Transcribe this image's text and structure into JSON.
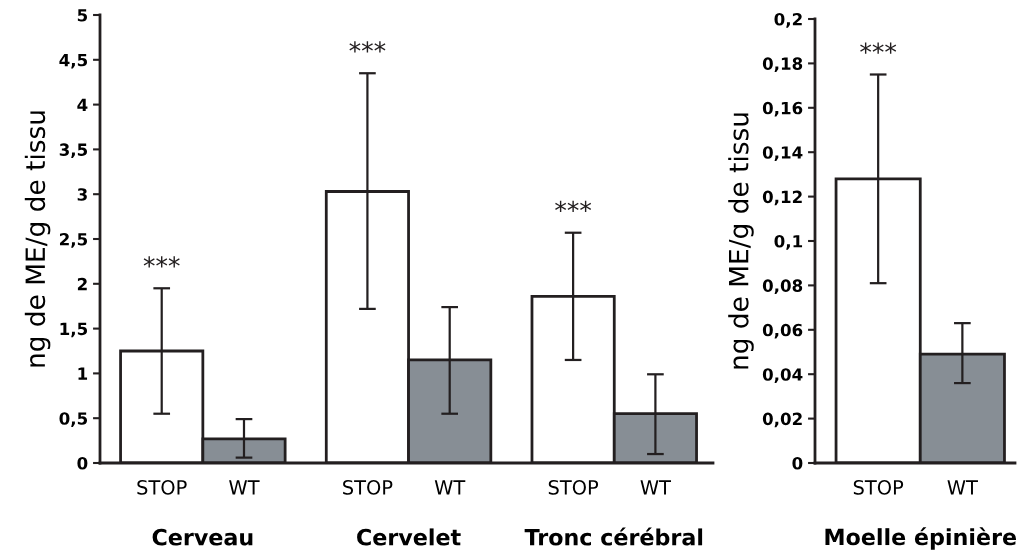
{
  "chart_data": [
    {
      "type": "bar",
      "ylabel": "ng de ME/g de tissu",
      "categories": [
        "Cerveau",
        "Cervelet",
        "Tronc cérébral"
      ],
      "series": [
        {
          "name": "STOP",
          "color": "#ffffff",
          "values": [
            1.25,
            3.03,
            1.86
          ],
          "errors": [
            [
              0.55,
              1.95
            ],
            [
              1.72,
              4.35
            ],
            [
              1.15,
              2.57
            ]
          ]
        },
        {
          "name": "WT",
          "color": "#878e95",
          "values": [
            0.27,
            1.15,
            0.55
          ],
          "errors": [
            [
              0.06,
              0.49
            ],
            [
              0.55,
              1.74
            ],
            [
              0.1,
              0.99
            ]
          ]
        }
      ],
      "ylim": [
        0,
        5
      ],
      "yticks": [
        0,
        {
          "value": 0.5,
          "label": "0,5"
        },
        1,
        {
          "value": 1.5,
          "label": "1,5"
        },
        2,
        {
          "value": 2.5,
          "label": "2,5"
        },
        3,
        {
          "value": 3.5,
          "label": "3,5"
        },
        4,
        {
          "value": 4.5,
          "label": "4,5"
        },
        5
      ],
      "annotations": [
        "***",
        "***",
        "***"
      ],
      "grid": false,
      "legend": false
    },
    {
      "type": "bar",
      "ylabel": "ng de ME/g de tissu",
      "categories": [
        "Moelle épinière"
      ],
      "series": [
        {
          "name": "STOP",
          "color": "#ffffff",
          "values": [
            0.128
          ],
          "errors": [
            [
              0.081,
              0.175
            ]
          ]
        },
        {
          "name": "WT",
          "color": "#878e95",
          "values": [
            0.049
          ],
          "errors": [
            [
              0.036,
              0.063
            ]
          ]
        }
      ],
      "ylim": [
        0,
        0.2
      ],
      "yticks": [
        0,
        {
          "value": 0.02,
          "label": "0,02"
        },
        {
          "value": 0.04,
          "label": "0,04"
        },
        {
          "value": 0.06,
          "label": "0,06"
        },
        {
          "value": 0.08,
          "label": "0,08"
        },
        {
          "value": 0.1,
          "label": "0,1"
        },
        {
          "value": 0.12,
          "label": "0,12"
        },
        {
          "value": 0.14,
          "label": "0,14"
        },
        {
          "value": 0.16,
          "label": "0,16"
        },
        {
          "value": 0.18,
          "label": "0,18"
        },
        {
          "value": 0.2,
          "label": "0,2"
        }
      ],
      "annotations": [
        "***"
      ],
      "grid": false,
      "legend": false
    }
  ]
}
